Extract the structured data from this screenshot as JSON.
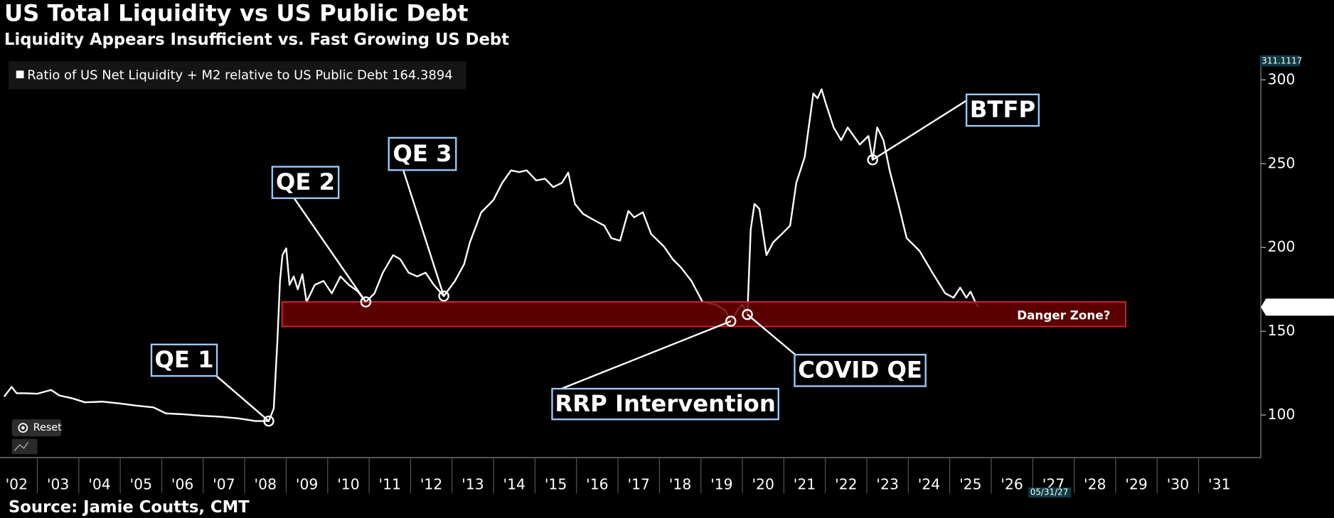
{
  "chart_data": {
    "type": "line",
    "title": "US Total Liquidity vs US Public Debt",
    "subtitle": "Liquidity Appears Insufficient vs. Fast Growing US Debt",
    "source": "Source: Jamie Coutts, CMT",
    "reset_label": "Reset",
    "cursor_date_label": "05/31/27",
    "x": [
      2002.2,
      2002.38,
      2002.5,
      2002.71,
      2003.0,
      2003.33,
      2003.53,
      2003.84,
      2004.15,
      2004.56,
      2004.97,
      2005.38,
      2005.8,
      2006.1,
      2006.5,
      2007.0,
      2007.4,
      2007.85,
      2008.26,
      2008.58,
      2008.7,
      2008.79,
      2008.85,
      2008.91,
      2009.0,
      2009.08,
      2009.18,
      2009.28,
      2009.39,
      2009.49,
      2009.69,
      2009.9,
      2010.1,
      2010.31,
      2010.51,
      2010.72,
      2010.92,
      2011.13,
      2011.33,
      2011.58,
      2011.75,
      2011.95,
      2012.16,
      2012.36,
      2012.56,
      2012.8,
      2013.07,
      2013.29,
      2013.43,
      2013.7,
      2014.0,
      2014.21,
      2014.42,
      2014.62,
      2014.8,
      2015.03,
      2015.24,
      2015.44,
      2015.65,
      2015.8,
      2015.96,
      2016.16,
      2016.47,
      2016.67,
      2016.84,
      2017.05,
      2017.25,
      2017.39,
      2017.6,
      2017.8,
      2018.11,
      2018.32,
      2018.52,
      2018.77,
      2019.04,
      2019.35,
      2019.59,
      2019.72,
      2019.88,
      2020.0,
      2020.12,
      2020.2,
      2020.29,
      2020.41,
      2020.58,
      2020.74,
      2020.95,
      2021.15,
      2021.3,
      2021.5,
      2021.71,
      2021.81,
      2021.91,
      2022.0,
      2022.2,
      2022.38,
      2022.54,
      2022.83,
      2023.04,
      2023.14,
      2023.25,
      2023.4,
      2023.55,
      2023.76,
      2023.96,
      2024.27,
      2024.58,
      2024.89,
      2025.09,
      2025.25,
      2025.4,
      2025.5,
      2025.64,
      2025.7
    ],
    "series": [
      {
        "name": "Ratio of US Net Liquidity + M2 relative to US Public Debt",
        "color": "#ffffff",
        "last_value": 164.3894,
        "values": [
          111,
          116.8,
          113,
          113,
          112.7,
          115,
          111.7,
          110,
          107.6,
          108,
          107,
          105.6,
          104.6,
          101,
          100.5,
          99.5,
          99,
          98,
          96.4,
          96.4,
          104,
          144.7,
          180,
          195.4,
          199.5,
          177.7,
          182.7,
          175,
          184,
          167.5,
          177.7,
          180,
          172.6,
          182.7,
          177.7,
          174,
          167.5,
          172.6,
          185,
          195.4,
          193,
          185,
          182.7,
          185,
          177.7,
          171,
          180,
          190,
          203,
          220.8,
          228.4,
          238.6,
          246,
          245,
          246,
          240,
          241,
          236,
          238.6,
          244.7,
          226,
          220,
          215.7,
          213,
          205.6,
          204,
          221.8,
          218,
          221,
          208,
          200.5,
          193,
          188,
          180,
          167.5,
          166,
          162.4,
          156,
          162.4,
          166,
          160,
          210.7,
          226,
          223,
          195.4,
          203,
          208,
          213,
          238.6,
          253.8,
          291.9,
          289,
          294.4,
          286.8,
          271.6,
          264,
          271.6,
          261.4,
          266.5,
          252.3,
          271.6,
          264,
          246,
          226,
          205.6,
          198,
          185,
          172.6,
          170,
          176,
          170,
          173.6,
          166,
          164.3894
        ]
      }
    ],
    "xlim": [
      2002.1,
      2032.5
    ],
    "xticks": [
      {
        "value": 2002,
        "label": "'02"
      },
      {
        "value": 2003,
        "label": "'03"
      },
      {
        "value": 2004,
        "label": "'04"
      },
      {
        "value": 2005,
        "label": "'05"
      },
      {
        "value": 2006,
        "label": "'06"
      },
      {
        "value": 2007,
        "label": "'07"
      },
      {
        "value": 2008,
        "label": "'08"
      },
      {
        "value": 2009,
        "label": "'09"
      },
      {
        "value": 2010,
        "label": "'10"
      },
      {
        "value": 2011,
        "label": "'11"
      },
      {
        "value": 2012,
        "label": "'12"
      },
      {
        "value": 2013,
        "label": "'13"
      },
      {
        "value": 2014,
        "label": "'14"
      },
      {
        "value": 2015,
        "label": "'15"
      },
      {
        "value": 2016,
        "label": "'16"
      },
      {
        "value": 2017,
        "label": "'17"
      },
      {
        "value": 2018,
        "label": "'18"
      },
      {
        "value": 2019,
        "label": "'19"
      },
      {
        "value": 2020,
        "label": "'20"
      },
      {
        "value": 2021,
        "label": "'21"
      },
      {
        "value": 2022,
        "label": "'22"
      },
      {
        "value": 2023,
        "label": "'23"
      },
      {
        "value": 2024,
        "label": "'24"
      },
      {
        "value": 2025,
        "label": "'25"
      },
      {
        "value": 2026,
        "label": "'26"
      },
      {
        "value": 2027,
        "label": "'27"
      },
      {
        "value": 2028,
        "label": "'28"
      },
      {
        "value": 2029,
        "label": "'29"
      },
      {
        "value": 2030,
        "label": "'30"
      },
      {
        "value": 2031,
        "label": "'31"
      }
    ],
    "ylim": [
      74.6,
      311.1117
    ],
    "yticks": [
      100,
      150,
      200,
      250,
      300
    ],
    "grid": false,
    "band": {
      "label": "Danger Zone?",
      "x": [
        2008.9,
        2029.24
      ],
      "y": [
        152.8,
        167.5
      ],
      "color": "#6b0000",
      "border": "#e0242a"
    },
    "annotations": [
      {
        "text": "QE 1",
        "x": 2008.58,
        "y": 96.4
      },
      {
        "text": "QE 2",
        "x": 2010.92,
        "y": 167.5
      },
      {
        "text": "QE 3",
        "x": 2012.8,
        "y": 171
      },
      {
        "text": "RRP Intervention",
        "x": 2019.72,
        "y": 156
      },
      {
        "text": "COVID QE",
        "x": 2020.12,
        "y": 160
      },
      {
        "text": "BTFP",
        "x": 2023.14,
        "y": 252.3
      }
    ]
  }
}
